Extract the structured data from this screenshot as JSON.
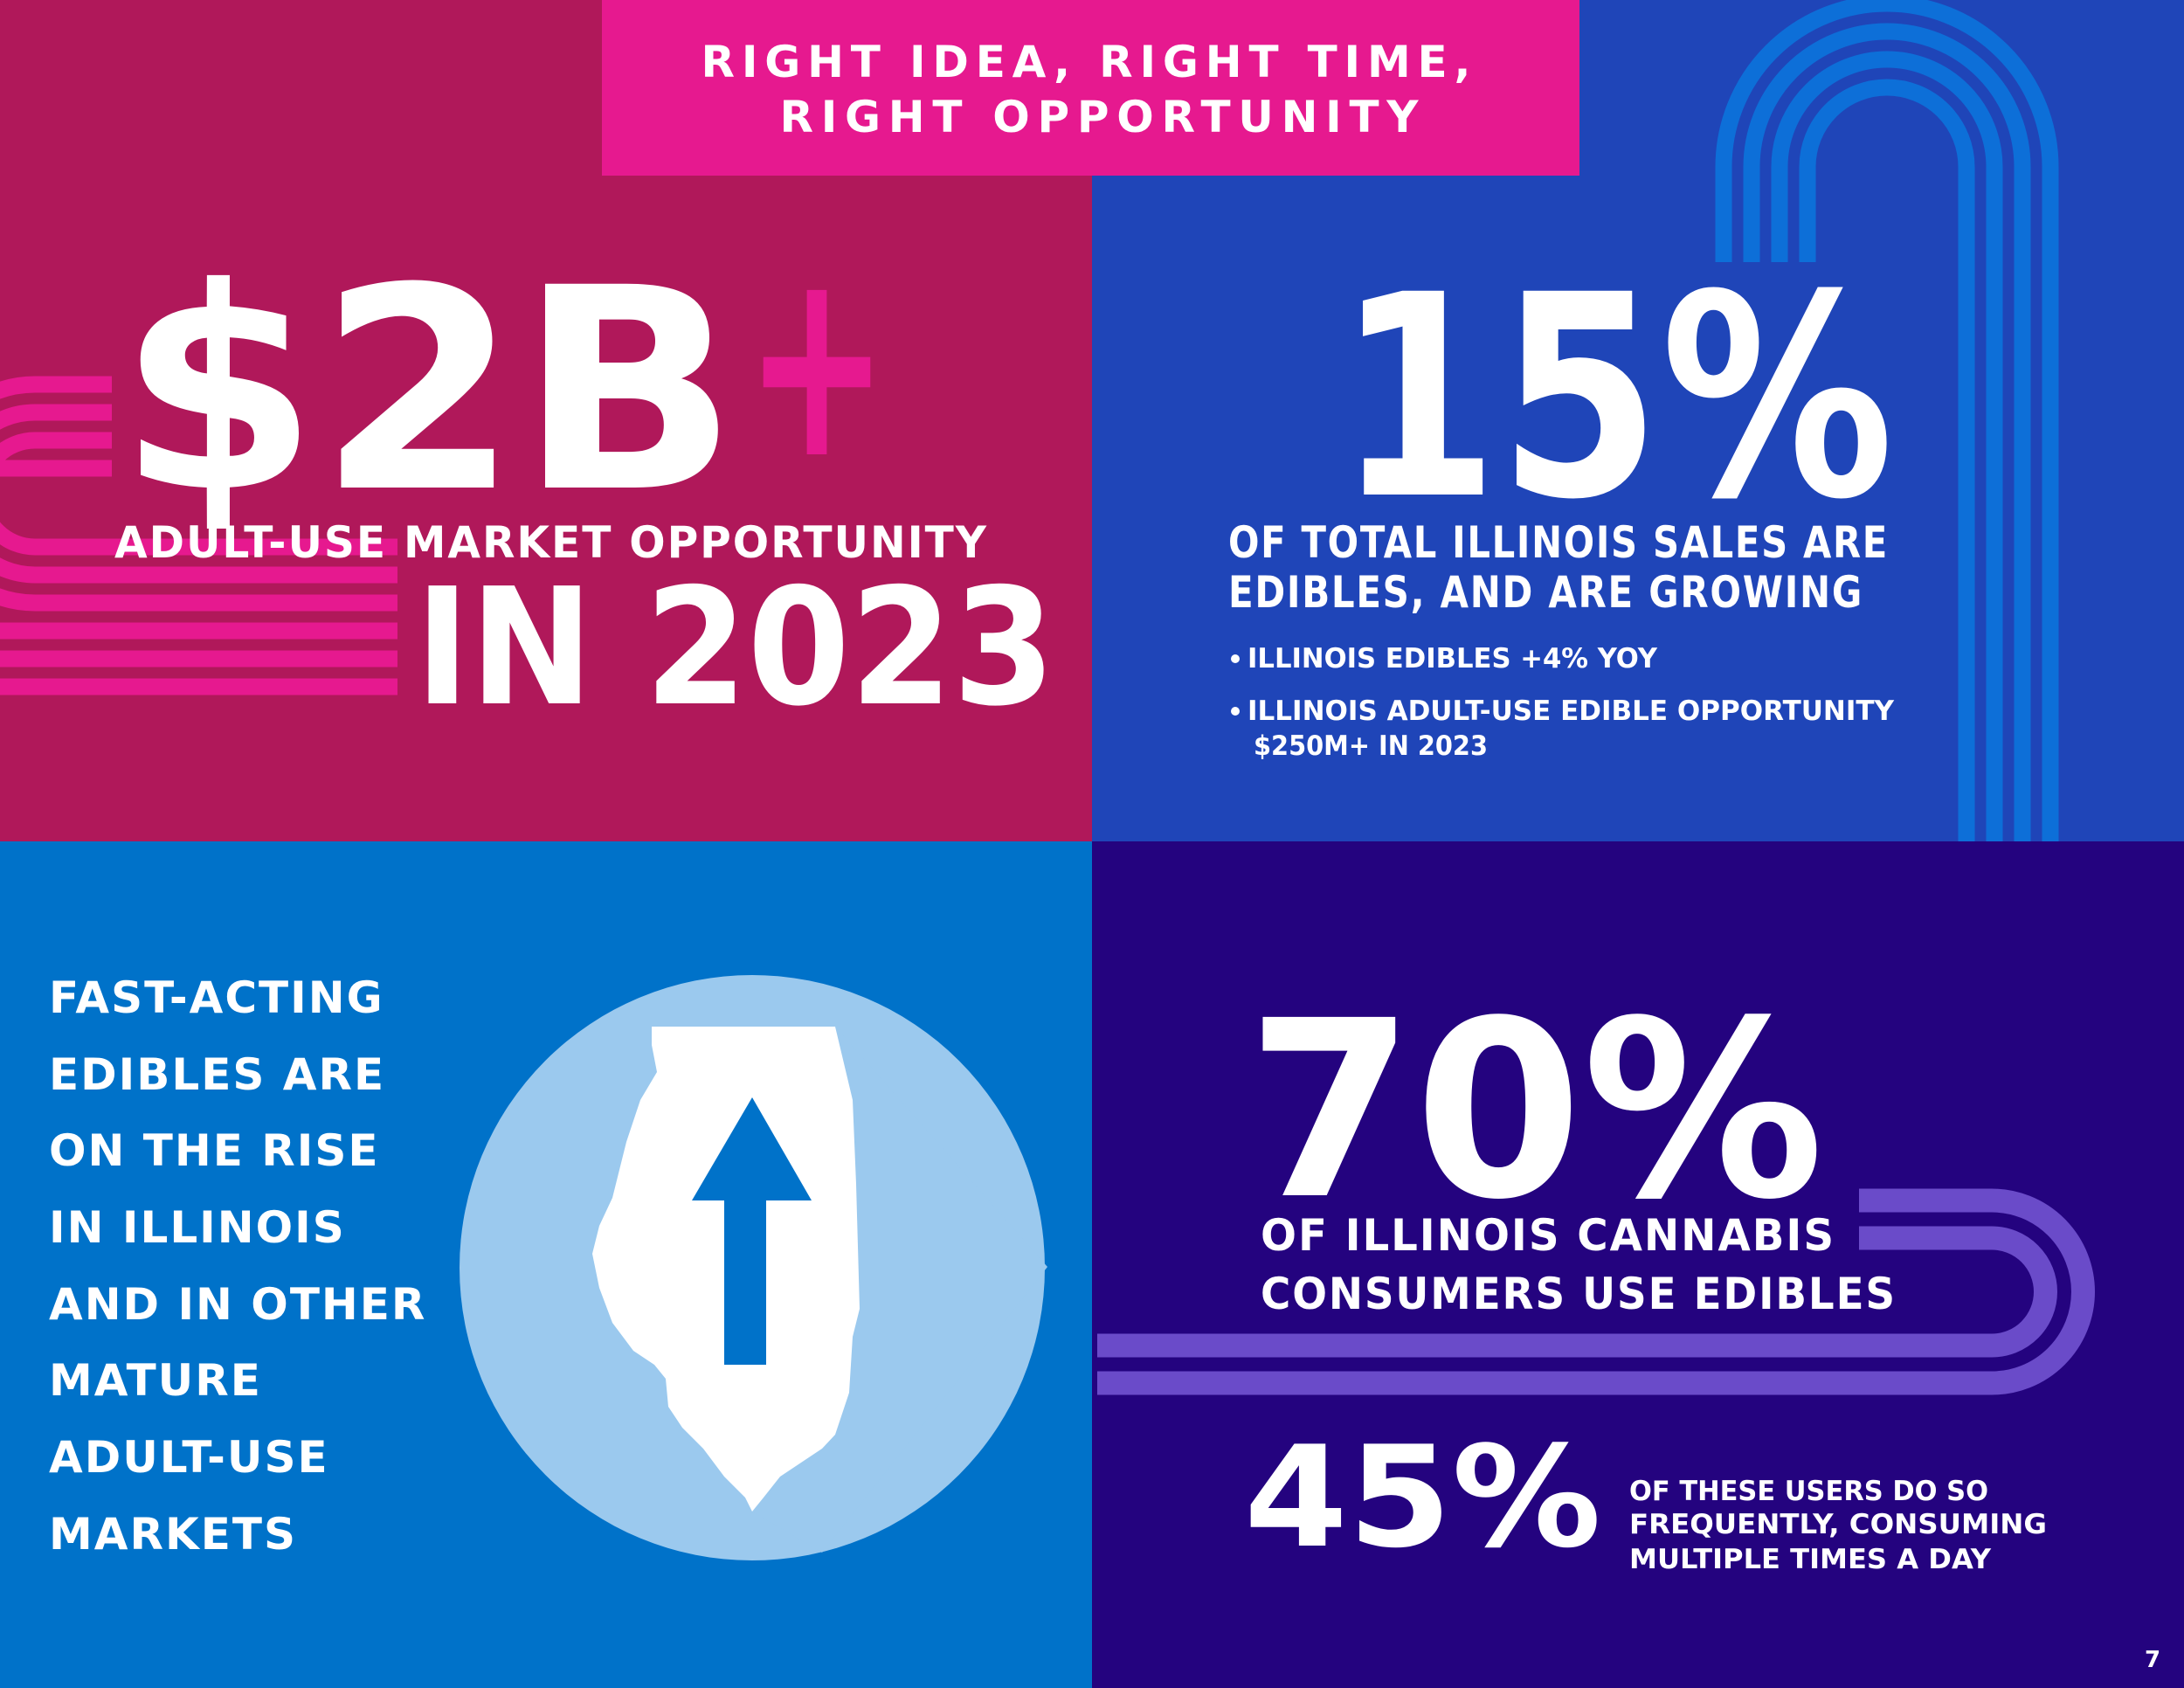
{
  "header": {
    "title": [
      "RIGHT IDEA, RIGHT TIME,",
      "RIGHT OPPORTUNITY"
    ]
  },
  "market": {
    "amount": "$2B",
    "suffix": "+",
    "label": "ADULT-USE MARKET OPPORTUNITY",
    "year": "IN 2023"
  },
  "edibles_share": {
    "figure": "15%",
    "caption": [
      "OF TOTAL ILLINOIS SALES ARE",
      "EDIBLES, AND ARE GROWING"
    ],
    "bullets": [
      [
        "ILLINOIS  EDIBLES +4% YOY"
      ],
      [
        "ILLINOIS ADULT-USE EDIBLE OPPORTUNITY",
        "$250M+ IN 2023"
      ]
    ]
  },
  "rise": {
    "lines": [
      "FAST-ACTING",
      "EDIBLES ARE",
      "ON THE RISE",
      "IN ILLINOIS",
      "AND IN OTHER",
      "MATURE",
      "ADULT-USE",
      "MARKETS"
    ]
  },
  "consumers": {
    "figure": "70%",
    "caption": [
      "OF ILLINOIS CANNABIS",
      "CONSUMERS USE EDIBLES"
    ],
    "frequent": {
      "figure": "45%",
      "caption": [
        "OF THESE USERS DO SO",
        "FREQUENTLY, CONSUMING",
        "MULTIPLE TIMES A DAY"
      ]
    }
  },
  "page_number": "7"
}
